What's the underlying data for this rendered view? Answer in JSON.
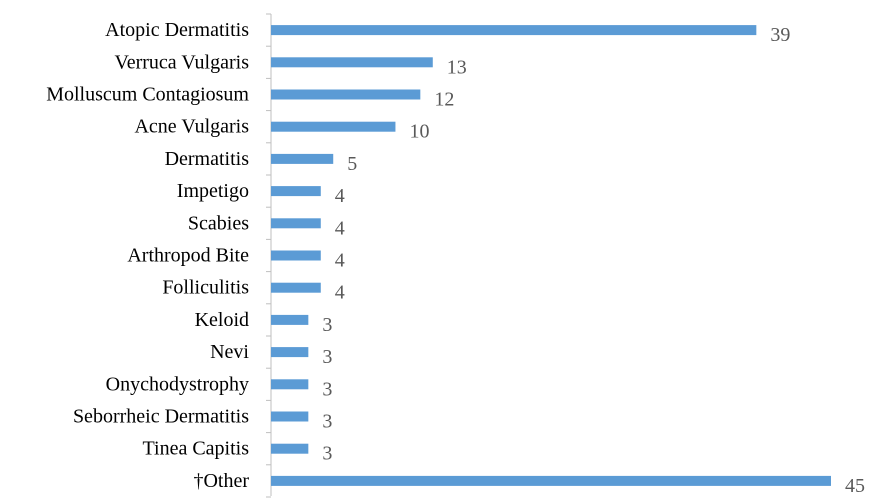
{
  "chart_data": {
    "type": "bar",
    "orientation": "horizontal",
    "title": "",
    "xlabel": "",
    "ylabel": "",
    "grid": false,
    "legend": "none",
    "bar_color": "#5b9bd5",
    "categories": [
      "Atopic Dermatitis",
      "Verruca Vulgaris",
      "Molluscum Contagiosum",
      "Acne Vulgaris",
      "Dermatitis",
      "Impetigo",
      "Scabies",
      "Arthropod Bite",
      "Folliculitis",
      "Keloid",
      "Nevi",
      "Onychodystrophy",
      "Seborrheic Dermatitis",
      "Tinea Capitis",
      "†Other"
    ],
    "values": [
      39,
      13,
      12,
      10,
      5,
      4,
      4,
      4,
      4,
      3,
      3,
      3,
      3,
      3,
      45
    ],
    "data_labels": [
      "39",
      "13",
      "12",
      "10",
      "5",
      "4",
      "4",
      "4",
      "4",
      "3",
      "3",
      "3",
      "3",
      "3",
      "45"
    ],
    "xlim": [
      0,
      45
    ]
  }
}
